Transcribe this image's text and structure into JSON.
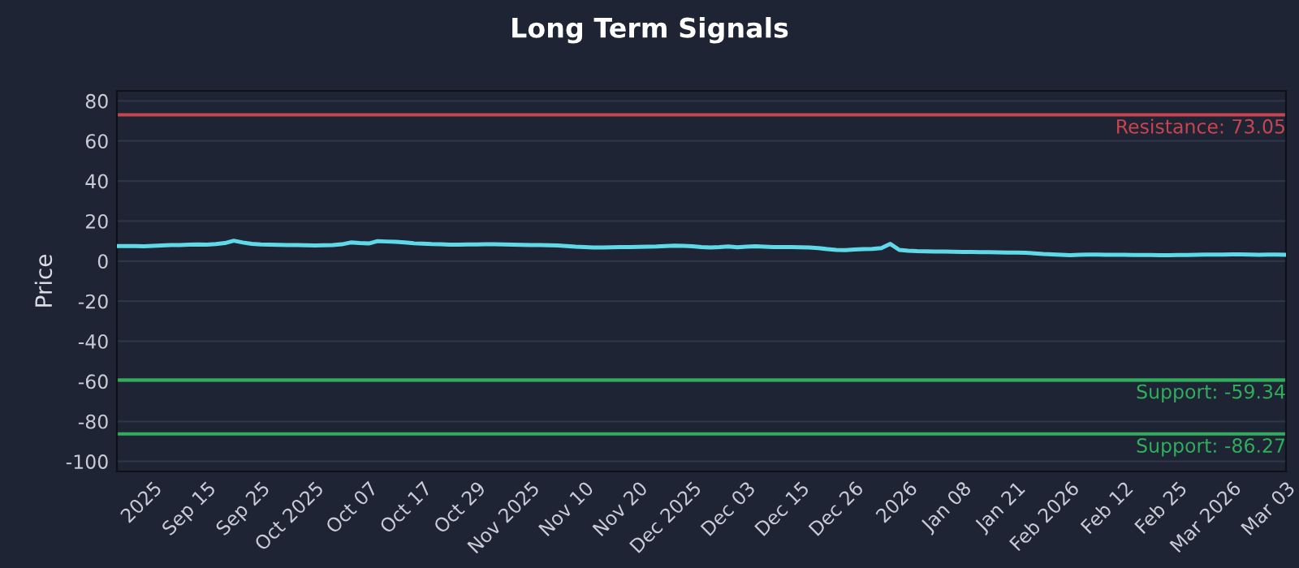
{
  "chart_data": {
    "type": "line",
    "title": "Long Term Signals",
    "ylabel": "Price",
    "categories": [
      null,
      null,
      null,
      null,
      "2025",
      null,
      null,
      null,
      null,
      null,
      "Sep 15",
      null,
      null,
      null,
      null,
      null,
      "Sep 25",
      null,
      null,
      null,
      null,
      null,
      "Oct 2025",
      null,
      null,
      null,
      null,
      null,
      "Oct 07",
      null,
      null,
      null,
      null,
      null,
      "Oct 17",
      null,
      null,
      null,
      null,
      null,
      "Oct 29",
      null,
      null,
      null,
      null,
      null,
      "Nov 2025",
      null,
      null,
      null,
      null,
      null,
      "Nov 10",
      null,
      null,
      null,
      null,
      null,
      "Nov 20",
      null,
      null,
      null,
      null,
      null,
      "Dec 2025",
      null,
      null,
      null,
      null,
      null,
      "Dec 03",
      null,
      null,
      null,
      null,
      null,
      "Dec 15",
      null,
      null,
      null,
      null,
      null,
      "Dec 26",
      null,
      null,
      null,
      null,
      null,
      "2026",
      null,
      null,
      null,
      null,
      null,
      "Jan 08",
      null,
      null,
      null,
      null,
      null,
      "Jan 21",
      null,
      null,
      null,
      null,
      null,
      "Feb 2026",
      null,
      null,
      null,
      null,
      null,
      "Feb 12",
      null,
      null,
      null,
      null,
      null,
      "Feb 25",
      null,
      null,
      null,
      null,
      null,
      "Mar 2026",
      null,
      null,
      null,
      null,
      null,
      "Mar 03"
    ],
    "series": [
      {
        "color": "#5fd8e8",
        "values": [
          7.5,
          7.5,
          7.5,
          7.4,
          7.6,
          7.8,
          8,
          8,
          8.2,
          8.3,
          8.2,
          8.5,
          9,
          10.2,
          9.3,
          8.6,
          8.3,
          8.2,
          8.1,
          8.0,
          8.0,
          7.9,
          7.8,
          7.9,
          8.0,
          8.4,
          9.3,
          9.0,
          8.8,
          10.0,
          9.8,
          9.6,
          9.3,
          8.9,
          8.7,
          8.5,
          8.4,
          8.2,
          8.2,
          8.3,
          8.3,
          8.4,
          8.4,
          8.3,
          8.2,
          8.1,
          8.0,
          8.0,
          7.9,
          7.8,
          7.5,
          7.2,
          7.0,
          6.8,
          6.8,
          6.9,
          7.0,
          7.0,
          7.1,
          7.2,
          7.3,
          7.5,
          7.7,
          7.6,
          7.4,
          7.0,
          6.8,
          7.0,
          7.3,
          6.9,
          7.2,
          7.4,
          7.2,
          7.0,
          7.0,
          7.0,
          6.9,
          6.8,
          6.5,
          6.0,
          5.6,
          5.5,
          5.8,
          6.0,
          6.1,
          6.5,
          8.6,
          5.6,
          5.2,
          5.0,
          4.9,
          4.8,
          4.8,
          4.7,
          4.6,
          4.6,
          4.5,
          4.5,
          4.4,
          4.3,
          4.3,
          4.2,
          3.9,
          3.6,
          3.4,
          3.2,
          3.0,
          3.2,
          3.3,
          3.3,
          3.2,
          3.2,
          3.2,
          3.1,
          3.1,
          3.1,
          3.0,
          3.0,
          3.1,
          3.1,
          3.2,
          3.3,
          3.3,
          3.3,
          3.4,
          3.4,
          3.3,
          3.2,
          3.3,
          3.3,
          3.2
        ]
      }
    ],
    "ylim": [
      -105,
      85
    ],
    "yticks": [
      -100,
      -80,
      -60,
      -40,
      -20,
      0,
      20,
      40,
      60,
      80
    ],
    "grid": "y",
    "ref_lines": [
      {
        "axis": "y",
        "value": 73.05,
        "label": "Resistance: 73.05",
        "color": "#c9444f"
      },
      {
        "axis": "y",
        "value": -59.34,
        "label": "Support: -59.34",
        "color": "#2fae5c"
      },
      {
        "axis": "y",
        "value": -86.27,
        "label": "Support: -86.27",
        "color": "#2fae5c"
      }
    ]
  }
}
